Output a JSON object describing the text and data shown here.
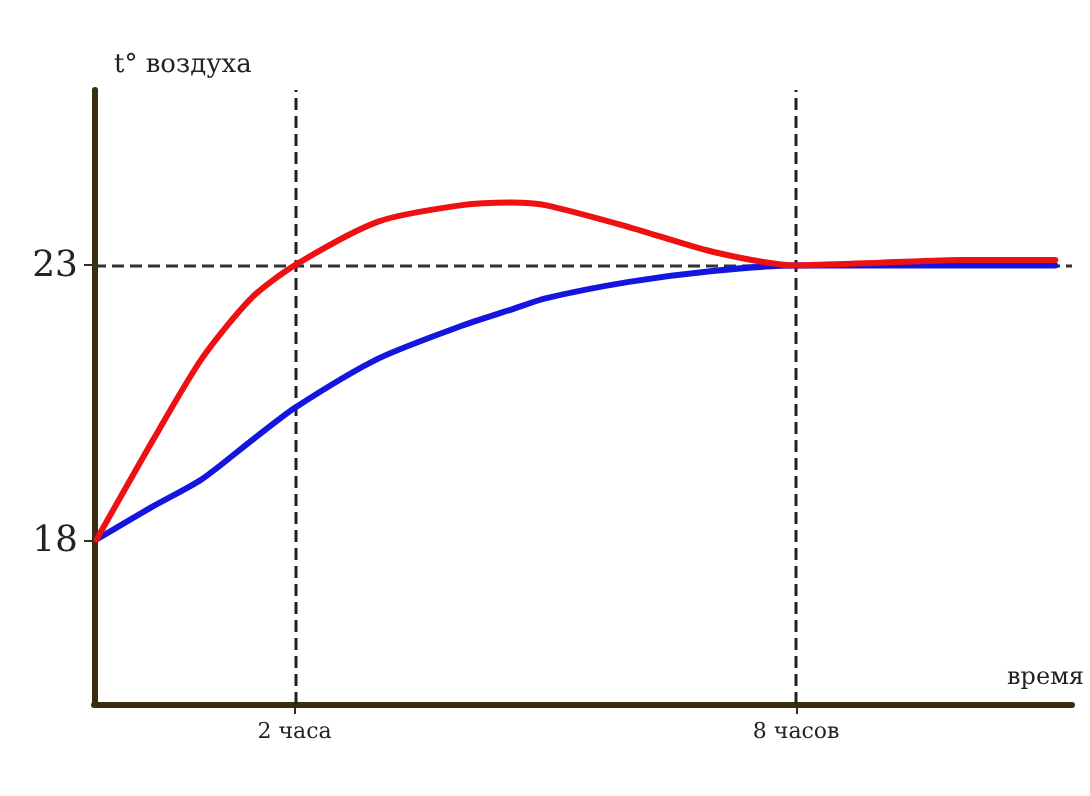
{
  "chart_data": {
    "type": "line",
    "xlabel": "время",
    "ylabel": "t° воздуха",
    "x": [
      -0.37,
      0.3,
      0.89,
      1.48,
      2,
      3,
      4,
      4.6,
      5,
      6,
      7,
      8,
      9,
      10,
      11.1
    ],
    "xlim": [
      -0.4,
      11.3
    ],
    "ylim": [
      15,
      26.2
    ],
    "xticks": [
      {
        "value": 2,
        "label": "2 часа"
      },
      {
        "value": 8,
        "label": "8 часов"
      }
    ],
    "yticks": [
      18,
      23
    ],
    "series": [
      {
        "color": "#ee1111",
        "values": [
          18,
          19.8,
          21.3,
          22.4,
          23,
          23.8,
          24.1,
          24.15,
          24.1,
          23.7,
          23.25,
          23,
          23.05,
          23.1,
          23.1
        ]
      },
      {
        "color": "#1515e0",
        "values": [
          18,
          18.6,
          19.1,
          19.8,
          20.4,
          21.3,
          21.9,
          22.2,
          22.4,
          22.7,
          22.9,
          23,
          23,
          23,
          23
        ]
      }
    ],
    "ref_lines": [
      {
        "axis": "y",
        "value": 23,
        "color": "#333333",
        "line_style": "dashed"
      },
      {
        "axis": "x",
        "value": 2,
        "color": "#222222",
        "line_style": "dashed"
      },
      {
        "axis": "x",
        "value": 8,
        "color": "#222222",
        "line_style": "dashed"
      }
    ],
    "grid": false,
    "marker": "none",
    "line_style": "solid"
  }
}
